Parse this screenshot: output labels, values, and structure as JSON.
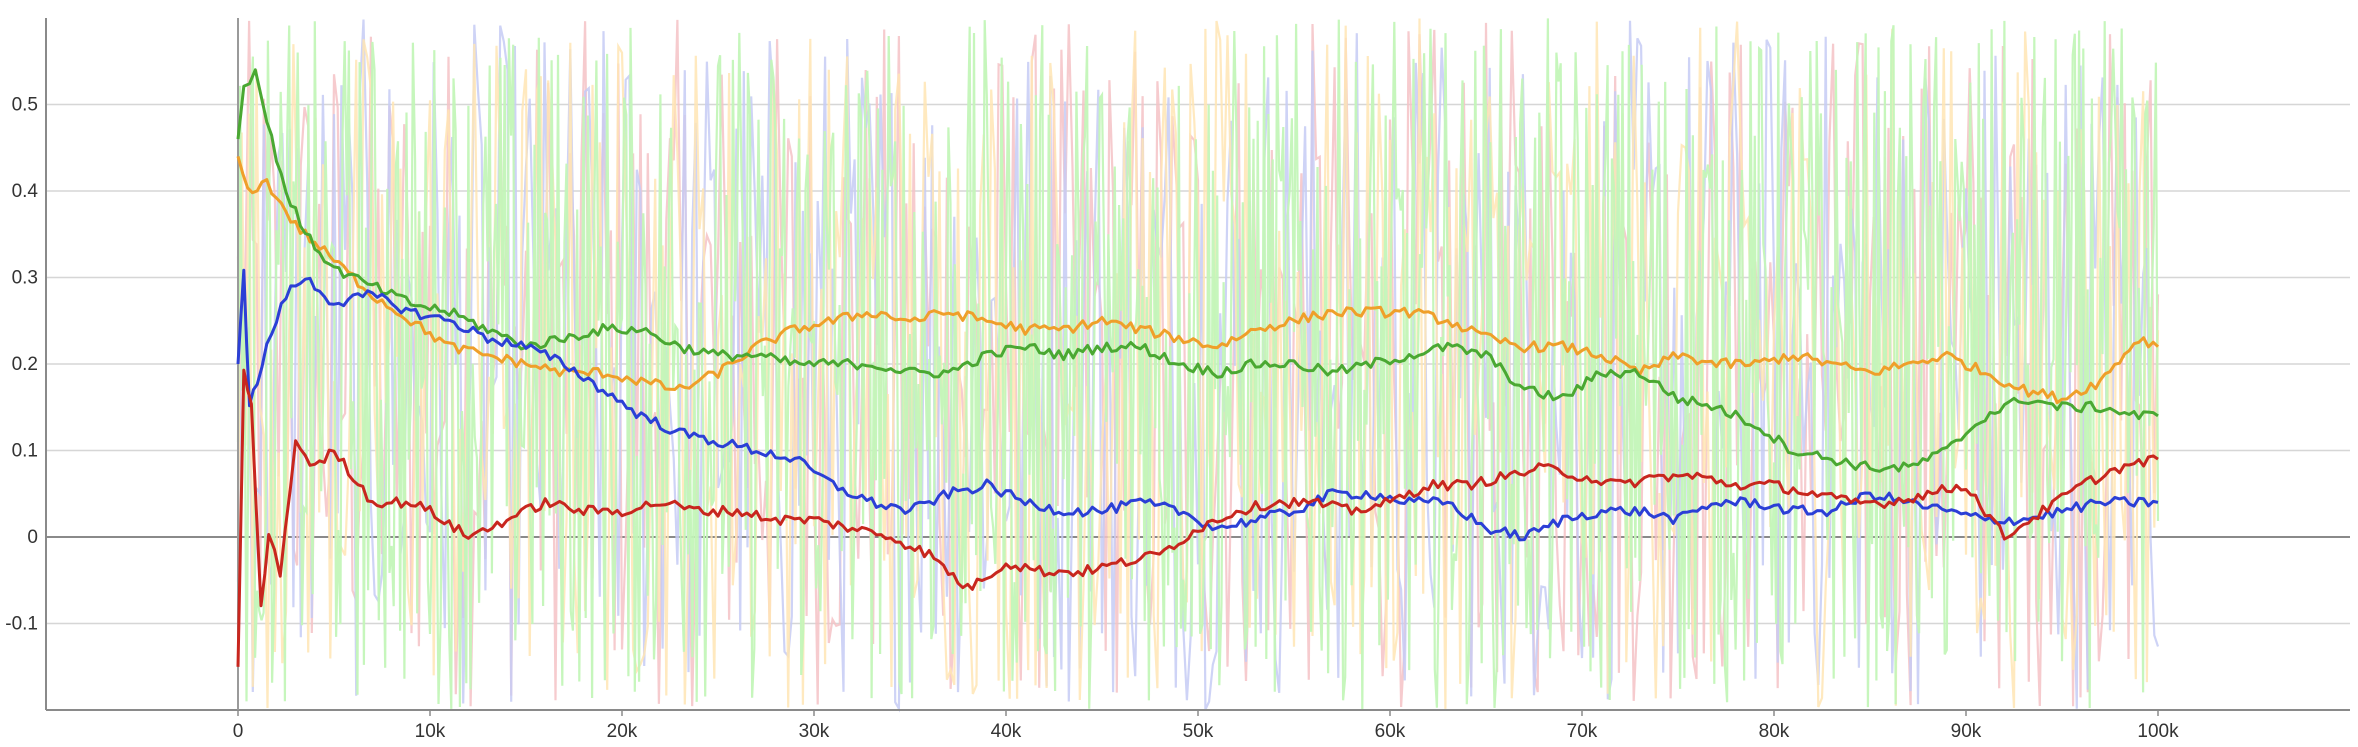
{
  "chart_data": {
    "type": "line",
    "title": "",
    "xlabel": "",
    "ylabel": "",
    "xlim": [
      -10000,
      110000
    ],
    "ylim": [
      -0.2,
      0.6
    ],
    "x_ticks": [
      {
        "value": 0,
        "label": "0"
      },
      {
        "value": 10000,
        "label": "10k"
      },
      {
        "value": 20000,
        "label": "20k"
      },
      {
        "value": 30000,
        "label": "30k"
      },
      {
        "value": 40000,
        "label": "40k"
      },
      {
        "value": 50000,
        "label": "50k"
      },
      {
        "value": 60000,
        "label": "60k"
      },
      {
        "value": 70000,
        "label": "70k"
      },
      {
        "value": 80000,
        "label": "80k"
      },
      {
        "value": 90000,
        "label": "90k"
      },
      {
        "value": 100000,
        "label": "100k"
      }
    ],
    "y_ticks": [
      {
        "value": 0.5,
        "label": "0.5"
      },
      {
        "value": 0.4,
        "label": "0.4"
      },
      {
        "value": 0.3,
        "label": "0.3"
      },
      {
        "value": 0.2,
        "label": "0.2"
      },
      {
        "value": 0.1,
        "label": "0.1"
      },
      {
        "value": 0,
        "label": "0"
      },
      {
        "value": -0.1,
        "label": "-0.1"
      }
    ],
    "grid": true,
    "legend": "none",
    "raw_noise": {
      "min": -0.2,
      "max": 0.6,
      "note_visible": false
    },
    "series": [
      {
        "color": "#ef9f2a",
        "faint_color": "#ffe5b4",
        "x": [
          0,
          500,
          1500,
          3000,
          5000,
          7000,
          9000,
          11000,
          13000,
          15000,
          17000,
          19000,
          21000,
          23000,
          25000,
          27000,
          29000,
          31000,
          33000,
          35000,
          37000,
          39000,
          41000,
          43000,
          45000,
          47000,
          49000,
          51000,
          53000,
          55000,
          57000,
          59000,
          61000,
          63000,
          65000,
          67000,
          69000,
          71000,
          73000,
          75000,
          77000,
          79000,
          81000,
          83000,
          85000,
          87000,
          89000,
          91000,
          93000,
          95000,
          97000,
          99000,
          100000
        ],
        "y": [
          0.44,
          0.4,
          0.41,
          0.36,
          0.32,
          0.28,
          0.25,
          0.22,
          0.21,
          0.2,
          0.19,
          0.19,
          0.18,
          0.17,
          0.19,
          0.22,
          0.24,
          0.25,
          0.26,
          0.25,
          0.26,
          0.25,
          0.24,
          0.24,
          0.25,
          0.24,
          0.23,
          0.22,
          0.24,
          0.25,
          0.26,
          0.26,
          0.26,
          0.25,
          0.23,
          0.22,
          0.22,
          0.21,
          0.19,
          0.21,
          0.2,
          0.2,
          0.21,
          0.2,
          0.19,
          0.2,
          0.21,
          0.19,
          0.17,
          0.16,
          0.18,
          0.23,
          0.22
        ]
      },
      {
        "color": "#4aa832",
        "faint_color": "#c3f5b8",
        "x": [
          0,
          300,
          900,
          1500,
          2500,
          3500,
          5000,
          7000,
          9000,
          11000,
          13000,
          15000,
          17000,
          19000,
          21000,
          23000,
          25000,
          27000,
          29000,
          31000,
          33000,
          35000,
          37000,
          39000,
          41000,
          43000,
          45000,
          47000,
          49000,
          51000,
          53000,
          55000,
          57000,
          59000,
          61000,
          63000,
          65000,
          67000,
          69000,
          71000,
          73000,
          75000,
          77000,
          79000,
          81000,
          83000,
          85000,
          87000,
          89000,
          91000,
          93000,
          95000,
          97000,
          99000,
          100000
        ],
        "y": [
          0.46,
          0.52,
          0.54,
          0.48,
          0.4,
          0.35,
          0.31,
          0.29,
          0.27,
          0.26,
          0.24,
          0.22,
          0.23,
          0.24,
          0.24,
          0.22,
          0.21,
          0.21,
          0.2,
          0.2,
          0.2,
          0.19,
          0.19,
          0.21,
          0.22,
          0.21,
          0.22,
          0.22,
          0.2,
          0.19,
          0.2,
          0.2,
          0.19,
          0.2,
          0.21,
          0.22,
          0.21,
          0.17,
          0.16,
          0.19,
          0.19,
          0.16,
          0.15,
          0.13,
          0.1,
          0.09,
          0.08,
          0.08,
          0.1,
          0.14,
          0.16,
          0.15,
          0.15,
          0.14,
          0.14
        ]
      },
      {
        "color": "#2b3fd6",
        "faint_color": "#c6cbf5",
        "x": [
          0,
          300,
          600,
          1000,
          1500,
          2500,
          3500,
          5000,
          7000,
          9000,
          11000,
          13000,
          15000,
          17000,
          19000,
          21000,
          23000,
          25000,
          27000,
          29000,
          31000,
          33000,
          35000,
          37000,
          39000,
          41000,
          43000,
          45000,
          47000,
          49000,
          51000,
          53000,
          55000,
          57000,
          59000,
          61000,
          63000,
          65000,
          67000,
          69000,
          71000,
          73000,
          75000,
          77000,
          79000,
          81000,
          83000,
          85000,
          87000,
          89000,
          91000,
          93000,
          95000,
          97000,
          99000,
          100000
        ],
        "y": [
          0.2,
          0.31,
          0.15,
          0.18,
          0.22,
          0.28,
          0.3,
          0.27,
          0.28,
          0.26,
          0.25,
          0.23,
          0.22,
          0.2,
          0.17,
          0.14,
          0.12,
          0.11,
          0.1,
          0.09,
          0.06,
          0.04,
          0.03,
          0.05,
          0.06,
          0.04,
          0.03,
          0.03,
          0.04,
          0.03,
          0.01,
          0.02,
          0.03,
          0.05,
          0.05,
          0.04,
          0.04,
          0.01,
          0.0,
          0.02,
          0.03,
          0.03,
          0.02,
          0.04,
          0.04,
          0.03,
          0.03,
          0.05,
          0.04,
          0.03,
          0.02,
          0.02,
          0.03,
          0.04,
          0.04,
          0.04
        ]
      },
      {
        "color": "#c8261e",
        "faint_color": "#f5c2c5",
        "x": [
          0,
          300,
          700,
          1200,
          1600,
          2200,
          3000,
          4000,
          5000,
          6000,
          7000,
          8000,
          9000,
          10000,
          12000,
          14000,
          16000,
          18000,
          20000,
          22000,
          24000,
          26000,
          28000,
          30000,
          32000,
          34000,
          36000,
          38000,
          40000,
          42000,
          44000,
          46000,
          48000,
          50000,
          52000,
          54000,
          56000,
          58000,
          60000,
          62000,
          64000,
          66000,
          68000,
          70000,
          72000,
          74000,
          76000,
          78000,
          80000,
          82000,
          84000,
          86000,
          88000,
          90000,
          92000,
          94000,
          96000,
          98000,
          100000
        ],
        "y": [
          -0.15,
          0.19,
          0.15,
          -0.08,
          0.0,
          -0.04,
          0.11,
          0.08,
          0.1,
          0.07,
          0.04,
          0.04,
          0.04,
          0.03,
          0.0,
          0.02,
          0.04,
          0.03,
          0.03,
          0.04,
          0.03,
          0.03,
          0.02,
          0.02,
          0.01,
          0.0,
          -0.02,
          -0.06,
          -0.03,
          -0.04,
          -0.04,
          -0.03,
          -0.02,
          0.01,
          0.03,
          0.04,
          0.04,
          0.03,
          0.04,
          0.06,
          0.06,
          0.07,
          0.08,
          0.07,
          0.06,
          0.07,
          0.07,
          0.06,
          0.06,
          0.05,
          0.04,
          0.04,
          0.05,
          0.06,
          0.0,
          0.03,
          0.06,
          0.08,
          0.09
        ]
      }
    ]
  }
}
